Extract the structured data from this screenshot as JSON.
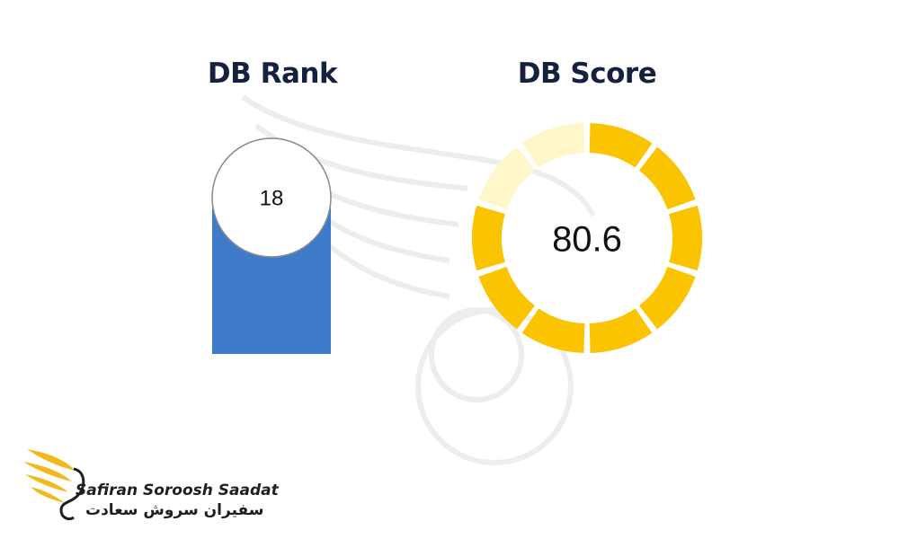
{
  "chart_data": [
    {
      "type": "bar",
      "title": "DB Rank",
      "values": [
        18
      ],
      "value_label": "18",
      "bar_color": "#3e7cc9"
    },
    {
      "type": "pie",
      "title": "DB Score",
      "values": [
        80.6
      ],
      "value_label": "80.6",
      "max": 100,
      "segments": 10,
      "fill_color": "#fbc400",
      "track_color": "#fff7c9"
    }
  ],
  "brand": {
    "name_en": "Safiran Soroosh Saadat",
    "name_fa": "سفیران سروش سعادت",
    "accent_color": "#f3b81b"
  }
}
